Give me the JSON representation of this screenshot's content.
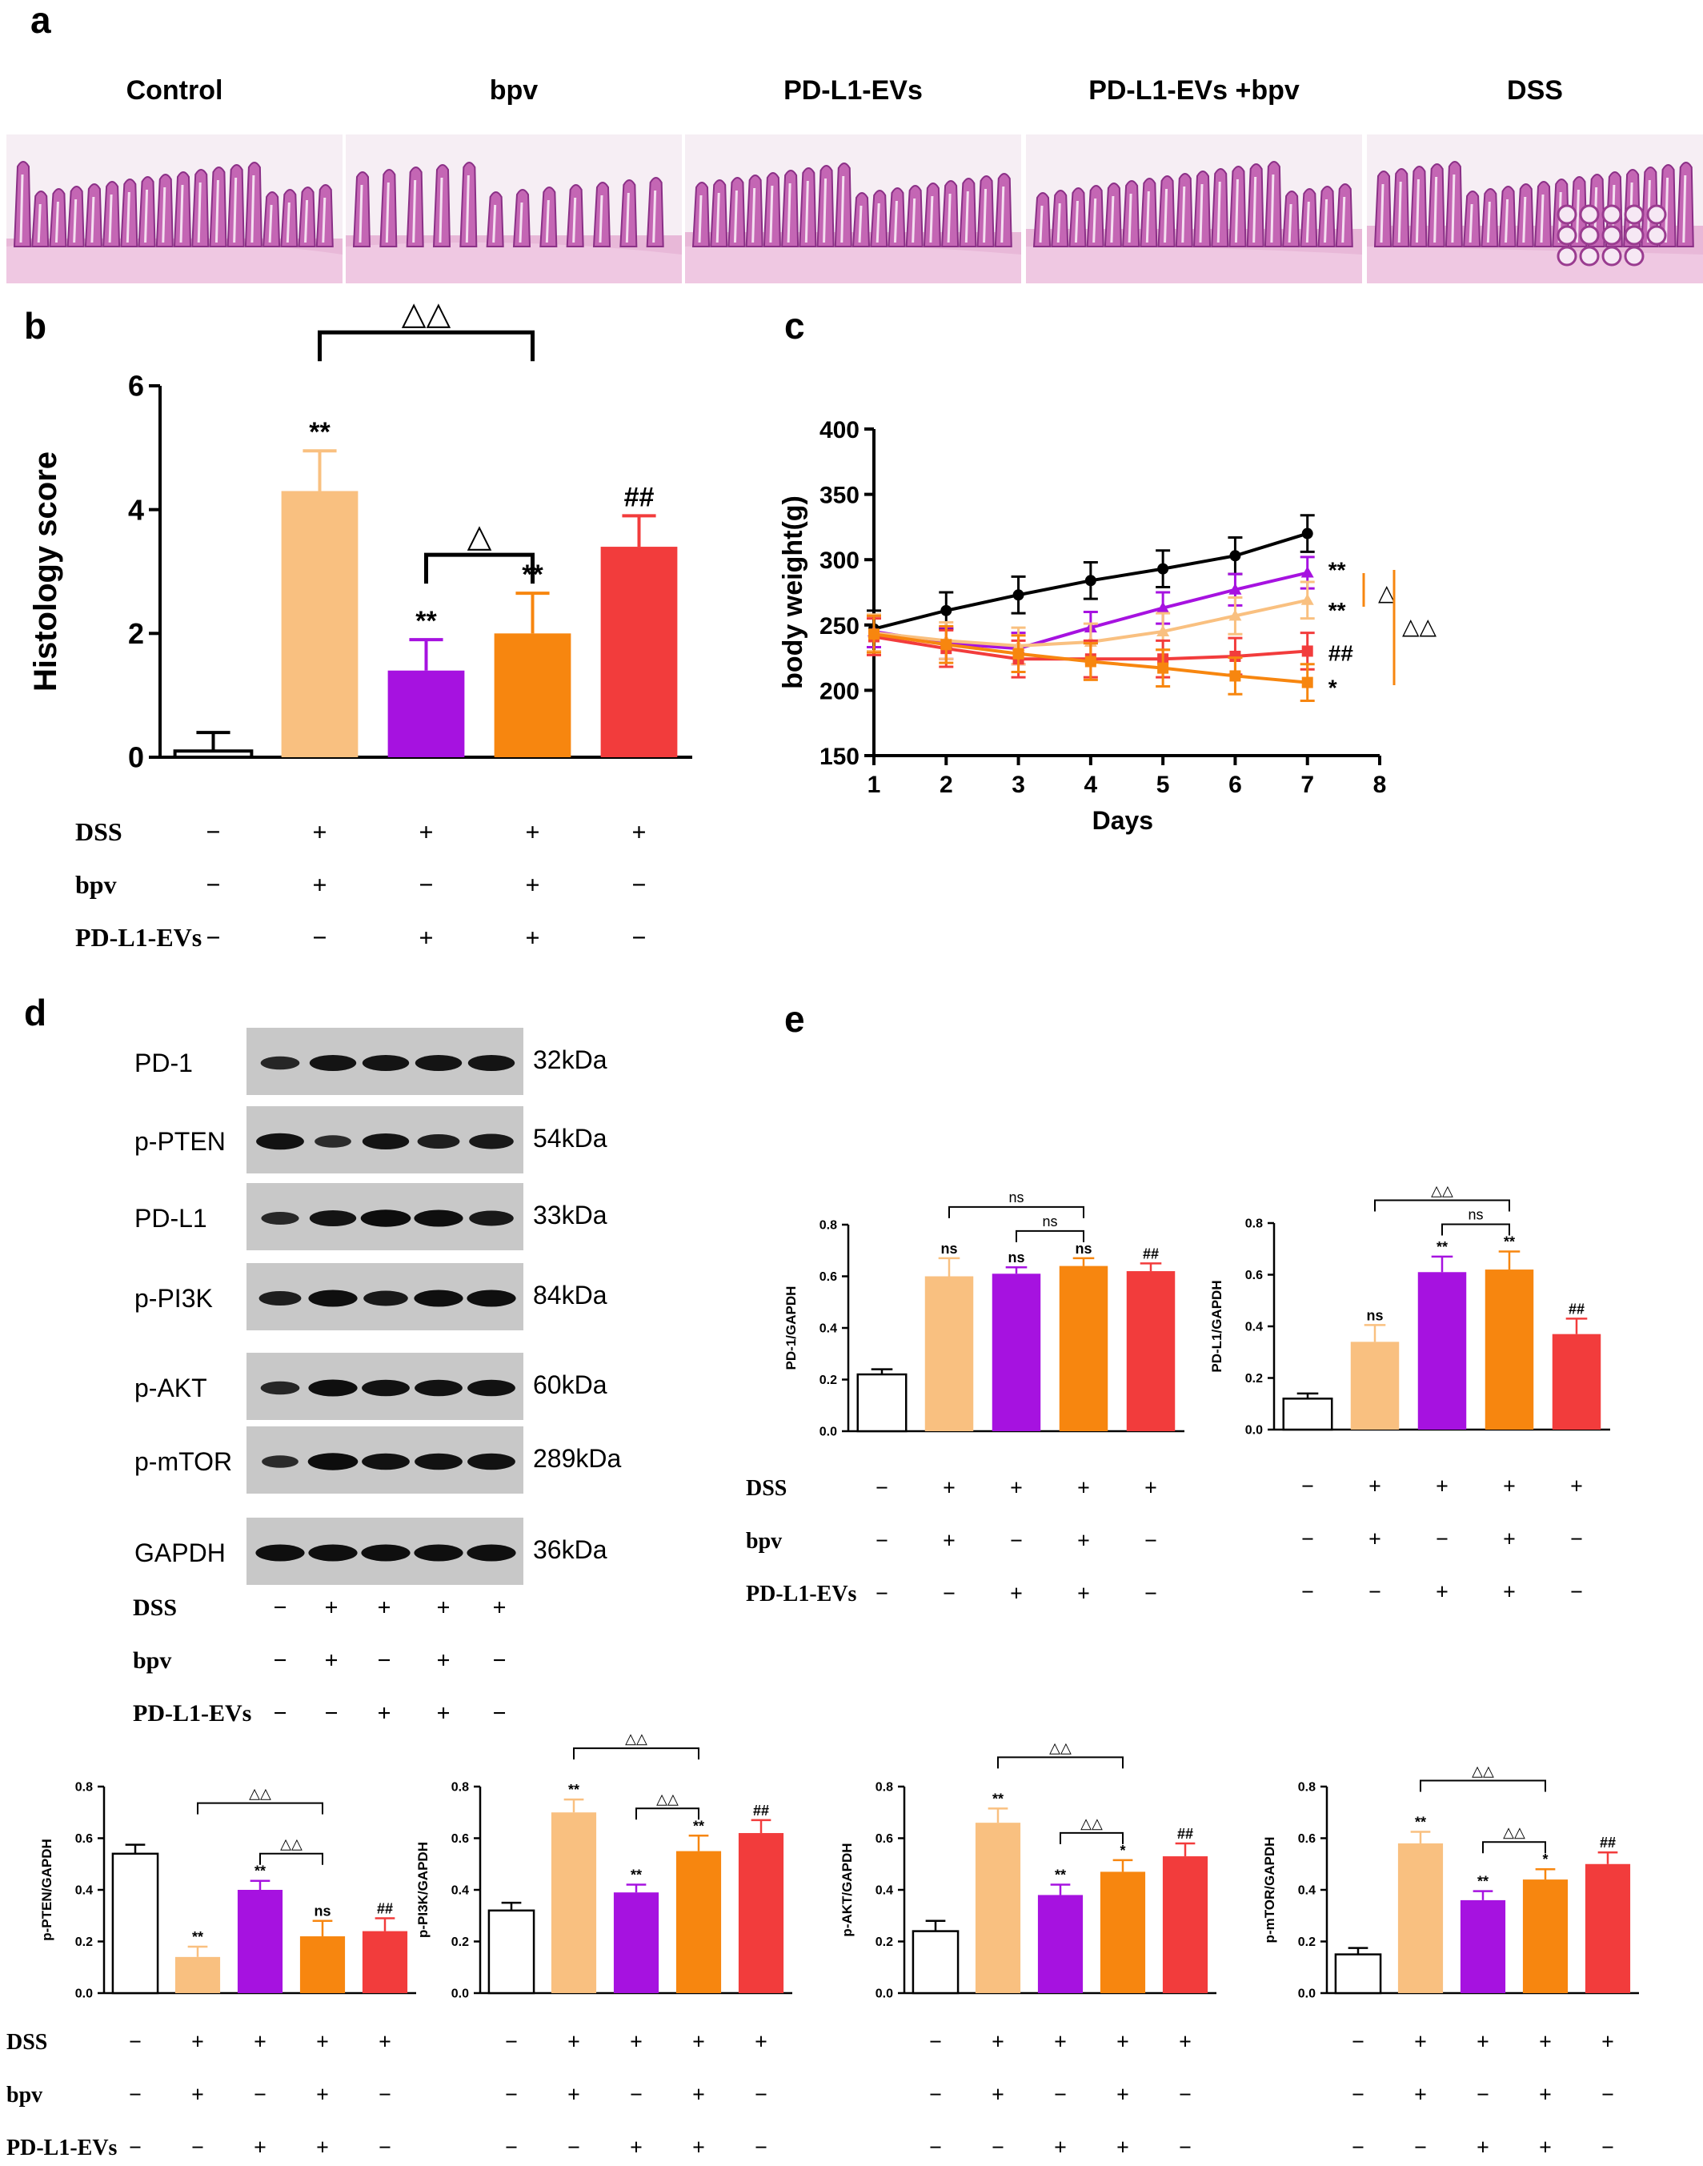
{
  "panels": {
    "a": "a",
    "b": "b",
    "c": "c",
    "d": "d",
    "e": "e"
  },
  "histology_titles": [
    "Control",
    "bpv",
    "PD-L1-EVs",
    "PD-L1-EVs  +bpv",
    "DSS"
  ],
  "conditions": {
    "labels": [
      "DSS",
      "bpv",
      "PD-L1-EVs"
    ],
    "signs": [
      [
        "−",
        "+",
        "+",
        "+",
        "+"
      ],
      [
        "−",
        "+",
        "−",
        "+",
        "−"
      ],
      [
        "−",
        "−",
        "+",
        "+",
        "−"
      ]
    ]
  },
  "colors": {
    "control": "#ffffff",
    "bpv": "#f9c080",
    "evs": "#a612e0",
    "evs_bpv": "#f7860f",
    "dss": "#f23c3c",
    "black": "#000000"
  },
  "blot": {
    "rows": [
      {
        "label": "PD-1",
        "kda": "32kDa"
      },
      {
        "label": "p-PTEN",
        "kda": "54kDa"
      },
      {
        "label": "PD-L1",
        "kda": "33kDa"
      },
      {
        "label": "p-PI3K",
        "kda": "84kDa"
      },
      {
        "label": "p-AKT",
        "kda": "60kDa"
      },
      {
        "label": "p-mTOR",
        "kda": "289kDa"
      },
      {
        "label": "GAPDH",
        "kda": "36kDa"
      }
    ]
  },
  "chart_data": [
    {
      "id": "b",
      "type": "bar",
      "ylabel": "Histology score",
      "ylim": [
        0,
        6
      ],
      "yticks": [
        "0",
        "2",
        "4",
        "6"
      ],
      "values": [
        0.1,
        4.3,
        1.4,
        2.0,
        3.4
      ],
      "errors": [
        0.3,
        0.65,
        0.5,
        0.65,
        0.5
      ],
      "sig": [
        "",
        "**",
        "**",
        "**",
        "##"
      ],
      "brackets": [
        {
          "from": 1,
          "to": 3,
          "label": "△△"
        },
        {
          "from": 2,
          "to": 3,
          "label": "△"
        }
      ]
    },
    {
      "id": "c",
      "type": "line",
      "xlabel": "Days",
      "ylabel": "body weight(g)",
      "x": [
        1,
        2,
        3,
        4,
        5,
        6,
        7
      ],
      "xlim": [
        1,
        8
      ],
      "xticks": [
        "1",
        "2",
        "3",
        "4",
        "5",
        "6",
        "7",
        "8"
      ],
      "ylim": [
        150,
        400
      ],
      "yticks": [
        "150",
        "200",
        "250",
        "300",
        "350",
        "400"
      ],
      "series": [
        {
          "values": [
            247,
            261,
            273,
            284,
            293,
            303,
            320
          ],
          "err": 14,
          "color": "black",
          "sig": ""
        },
        {
          "values": [
            245,
            236,
            232,
            248,
            263,
            277,
            290
          ],
          "err": 12,
          "color": "evs",
          "sig": "**"
        },
        {
          "values": [
            244,
            238,
            234,
            237,
            245,
            257,
            269
          ],
          "err": 14,
          "color": "bpv",
          "sig": "**"
        },
        {
          "values": [
            241,
            232,
            224,
            224,
            224,
            226,
            230
          ],
          "err": 14,
          "color": "dss",
          "sig": "##"
        },
        {
          "values": [
            243,
            235,
            228,
            222,
            217,
            211,
            206
          ],
          "err": 14,
          "color": "evs_bpv",
          "sig": "*"
        }
      ],
      "brackets": [
        {
          "label": "△"
        },
        {
          "label": "△△"
        }
      ]
    },
    {
      "id": "pd1",
      "type": "bar",
      "ylabel": "PD-1/GAPDH",
      "ylim": [
        0,
        0.8
      ],
      "yticks": [
        "0.0",
        "0.2",
        "0.4",
        "0.6",
        "0.8"
      ],
      "values": [
        0.22,
        0.6,
        0.61,
        0.64,
        0.62
      ],
      "errors": [
        0.02,
        0.07,
        0.025,
        0.03,
        0.03
      ],
      "sig": [
        "",
        "ns",
        "ns",
        "ns",
        "##"
      ],
      "brackets": [
        {
          "from": 1,
          "to": 3,
          "label": "ns"
        },
        {
          "from": 2,
          "to": 3,
          "label": "ns"
        }
      ]
    },
    {
      "id": "pdl1",
      "type": "bar",
      "ylabel": "PD-L1/GAPDH",
      "ylim": [
        0,
        0.8
      ],
      "yticks": [
        "0.0",
        "0.2",
        "0.4",
        "0.6",
        "0.8"
      ],
      "values": [
        0.12,
        0.34,
        0.61,
        0.62,
        0.37
      ],
      "errors": [
        0.02,
        0.065,
        0.06,
        0.07,
        0.06
      ],
      "sig": [
        "",
        "ns",
        "**",
        "**",
        "##"
      ],
      "brackets": [
        {
          "from": 1,
          "to": 3,
          "label": "△△"
        },
        {
          "from": 2,
          "to": 3,
          "label": "ns"
        }
      ]
    },
    {
      "id": "pten",
      "type": "bar",
      "ylabel": "p-PTEN/GAPDH",
      "ylim": [
        0,
        0.8
      ],
      "yticks": [
        "0.0",
        "0.2",
        "0.4",
        "0.6",
        "0.8"
      ],
      "values": [
        0.54,
        0.14,
        0.4,
        0.22,
        0.24
      ],
      "errors": [
        0.035,
        0.04,
        0.035,
        0.06,
        0.05
      ],
      "sig": [
        "",
        "**",
        "**",
        "ns",
        "##"
      ],
      "brackets": [
        {
          "from": 1,
          "to": 3,
          "label": "△△"
        },
        {
          "from": 2,
          "to": 3,
          "label": "△△"
        }
      ]
    },
    {
      "id": "pi3k",
      "type": "bar",
      "ylabel": "p-PI3K/GAPDH",
      "ylim": [
        0,
        0.8
      ],
      "yticks": [
        "0.0",
        "0.2",
        "0.4",
        "0.6",
        "0.8"
      ],
      "values": [
        0.32,
        0.7,
        0.39,
        0.55,
        0.62
      ],
      "errors": [
        0.03,
        0.05,
        0.03,
        0.06,
        0.05
      ],
      "sig": [
        "",
        "**",
        "**",
        "**",
        "##"
      ],
      "brackets": [
        {
          "from": 1,
          "to": 3,
          "label": "△△"
        },
        {
          "from": 2,
          "to": 3,
          "label": "△△"
        }
      ]
    },
    {
      "id": "akt",
      "type": "bar",
      "ylabel": "p-AKT/GAPDH",
      "ylim": [
        0,
        0.8
      ],
      "yticks": [
        "0.0",
        "0.2",
        "0.4",
        "0.6",
        "0.8"
      ],
      "values": [
        0.24,
        0.66,
        0.38,
        0.47,
        0.53
      ],
      "errors": [
        0.04,
        0.055,
        0.04,
        0.045,
        0.05
      ],
      "sig": [
        "",
        "**",
        "**",
        "*",
        "##"
      ],
      "brackets": [
        {
          "from": 1,
          "to": 3,
          "label": "△△"
        },
        {
          "from": 2,
          "to": 3,
          "label": "△△"
        }
      ]
    },
    {
      "id": "mtor",
      "type": "bar",
      "ylabel": "p-mTOR/GAPDH",
      "ylim": [
        0,
        0.8
      ],
      "yticks": [
        "0.0",
        "0.2",
        "0.4",
        "0.6",
        "0.8"
      ],
      "values": [
        0.15,
        0.58,
        0.36,
        0.44,
        0.5
      ],
      "errors": [
        0.025,
        0.045,
        0.035,
        0.04,
        0.045
      ],
      "sig": [
        "",
        "**",
        "**",
        "*",
        "##"
      ],
      "brackets": [
        {
          "from": 1,
          "to": 3,
          "label": "△△"
        },
        {
          "from": 2,
          "to": 3,
          "label": "△△"
        }
      ]
    }
  ]
}
